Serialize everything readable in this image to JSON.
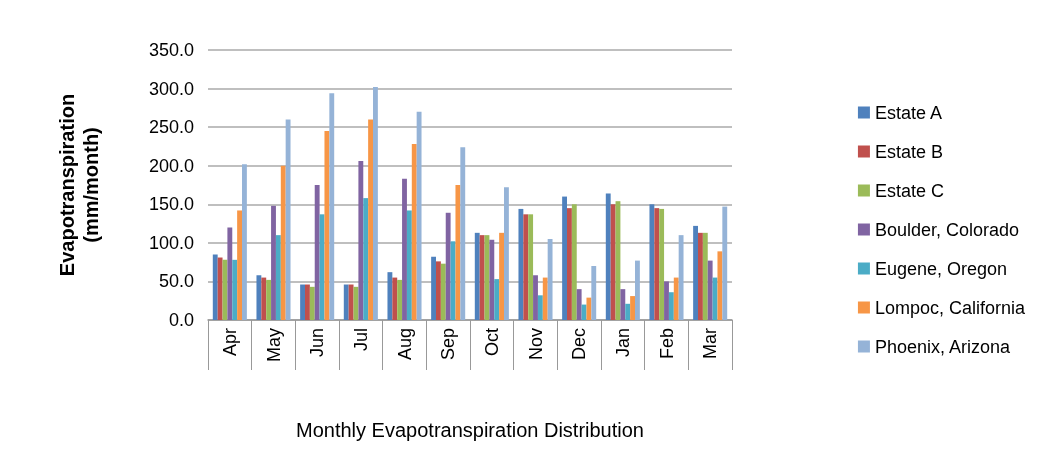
{
  "chart_data": {
    "type": "bar",
    "xlabel": "Monthly Evapotranspiration Distribution",
    "ylabel": "Evapotranspiration (mm/month)",
    "categories": [
      "Apr",
      "May",
      "Jun",
      "Jul",
      "Aug",
      "Sep",
      "Oct",
      "Nov",
      "Dec",
      "Jan",
      "Feb",
      "Mar"
    ],
    "series": [
      {
        "name": "Estate A",
        "color": "#4f81bd",
        "values": [
          85,
          58,
          46,
          46,
          62,
          82,
          113,
          144,
          160,
          164,
          150,
          122
        ]
      },
      {
        "name": "Estate B",
        "color": "#c0504d",
        "values": [
          81,
          55,
          46,
          46,
          55,
          76,
          110,
          137,
          145,
          150,
          145,
          113
        ]
      },
      {
        "name": "Estate C",
        "color": "#9bbb59",
        "values": [
          78,
          52,
          43,
          43,
          52,
          73,
          110,
          137,
          150,
          154,
          144,
          113
        ]
      },
      {
        "name": "Boulder, Colorado",
        "color": "#8064a2",
        "values": [
          120,
          148,
          175,
          206,
          183,
          139,
          104,
          58,
          40,
          40,
          50,
          77
        ]
      },
      {
        "name": "Eugene, Oregon",
        "color": "#4bacc6",
        "values": [
          78,
          110,
          137,
          158,
          142,
          102,
          53,
          32,
          20,
          21,
          36,
          55
        ]
      },
      {
        "name": "Lompoc, California",
        "color": "#f79646",
        "values": [
          142,
          200,
          245,
          260,
          228,
          175,
          113,
          55,
          29,
          31,
          55,
          89
        ]
      },
      {
        "name": "Phoenix, Arizona",
        "color": "#95b3d7",
        "values": [
          202,
          260,
          294,
          302,
          270,
          224,
          172,
          105,
          70,
          77,
          110,
          147
        ]
      }
    ],
    "ylim": [
      0,
      350
    ],
    "yticks": [
      {
        "value": 0,
        "label": "0.0"
      },
      {
        "value": 50,
        "label": "50.0"
      },
      {
        "value": 100,
        "label": "100.0"
      },
      {
        "value": 150,
        "label": "150.0"
      },
      {
        "value": 200,
        "label": "200.0"
      },
      {
        "value": 250,
        "label": "250.0"
      },
      {
        "value": 300,
        "label": "300.0"
      },
      {
        "value": 350,
        "label": "350.0"
      }
    ],
    "grid": "y",
    "legend": "right"
  }
}
